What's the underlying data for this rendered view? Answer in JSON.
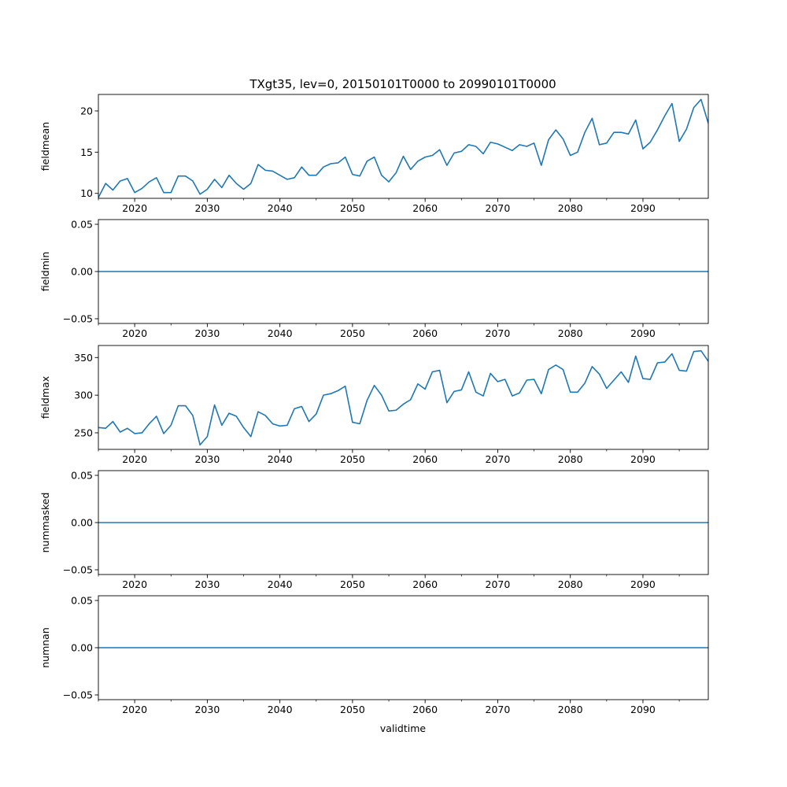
{
  "figure": {
    "title": "TXgt35, lev=0, 20150101T0000 to 20990101T0000",
    "xlabel": "validtime"
  },
  "colors": {
    "line": "#1f77b4",
    "axes": "#000000",
    "background": "#ffffff"
  },
  "chart_data": [
    {
      "type": "line",
      "ylabel": "fieldmean",
      "xlim": [
        2015,
        2099
      ],
      "ylim": [
        9.4,
        22.0
      ],
      "x_ticks": [
        "2020",
        "2030",
        "2040",
        "2050",
        "2060",
        "2070",
        "2080",
        "2090"
      ],
      "y_ticks": [
        "10",
        "15",
        "20"
      ],
      "grid": false,
      "x_start_year": 2015,
      "series": [
        {
          "values": [
            9.5,
            11.2,
            10.4,
            11.5,
            11.8,
            10.1,
            10.6,
            11.4,
            11.9,
            10.1,
            10.1,
            12.1,
            12.1,
            11.5,
            9.9,
            10.5,
            11.7,
            10.7,
            12.2,
            11.2,
            10.5,
            11.2,
            13.5,
            12.8,
            12.7,
            12.2,
            11.7,
            11.9,
            13.2,
            12.2,
            12.2,
            13.2,
            13.6,
            13.7,
            14.4,
            12.3,
            12.1,
            13.9,
            14.4,
            12.2,
            11.4,
            12.5,
            14.5,
            12.9,
            13.9,
            14.4,
            14.6,
            15.3,
            13.4,
            14.9,
            15.1,
            15.9,
            15.7,
            14.8,
            16.2,
            16.0,
            15.6,
            15.2,
            15.9,
            15.7,
            16.1,
            13.4,
            16.5,
            17.7,
            16.6,
            14.6,
            15.0,
            17.4,
            19.1,
            15.9,
            16.1,
            17.4,
            17.4,
            17.2,
            18.9,
            15.4,
            16.2,
            17.7,
            19.4,
            20.9,
            16.3,
            17.8,
            20.4,
            21.4,
            18.5
          ]
        }
      ]
    },
    {
      "type": "line",
      "ylabel": "fieldmin",
      "xlim": [
        2015,
        2099
      ],
      "ylim": [
        -0.055,
        0.055
      ],
      "x_ticks": [
        "2020",
        "2030",
        "2040",
        "2050",
        "2060",
        "2070",
        "2080",
        "2090"
      ],
      "y_ticks": [
        "−0.05",
        "0.00",
        "0.05"
      ],
      "grid": false,
      "x_start_year": 2015,
      "series": [
        {
          "values": [
            0,
            0,
            0,
            0,
            0,
            0,
            0,
            0,
            0,
            0,
            0,
            0,
            0,
            0,
            0,
            0,
            0,
            0,
            0,
            0,
            0,
            0,
            0,
            0,
            0,
            0,
            0,
            0,
            0,
            0,
            0,
            0,
            0,
            0,
            0,
            0,
            0,
            0,
            0,
            0,
            0,
            0,
            0,
            0,
            0,
            0,
            0,
            0,
            0,
            0,
            0,
            0,
            0,
            0,
            0,
            0,
            0,
            0,
            0,
            0,
            0,
            0,
            0,
            0,
            0,
            0,
            0,
            0,
            0,
            0,
            0,
            0,
            0,
            0,
            0,
            0,
            0,
            0,
            0,
            0,
            0,
            0,
            0,
            0,
            0
          ]
        }
      ]
    },
    {
      "type": "line",
      "ylabel": "fieldmax",
      "xlim": [
        2015,
        2099
      ],
      "ylim": [
        228,
        366
      ],
      "x_ticks": [
        "2020",
        "2030",
        "2040",
        "2050",
        "2060",
        "2070",
        "2080",
        "2090"
      ],
      "y_ticks": [
        "250",
        "300",
        "350"
      ],
      "grid": false,
      "x_start_year": 2015,
      "series": [
        {
          "values": [
            257,
            256,
            265,
            251,
            256,
            249,
            250,
            262,
            272,
            249,
            260,
            286,
            286,
            273,
            234,
            245,
            287,
            260,
            276,
            272,
            257,
            245,
            278,
            273,
            262,
            259,
            260,
            282,
            285,
            265,
            275,
            300,
            302,
            306,
            312,
            264,
            262,
            293,
            313,
            300,
            279,
            280,
            288,
            294,
            315,
            308,
            331,
            333,
            290,
            305,
            307,
            331,
            304,
            299,
            329,
            318,
            321,
            299,
            303,
            320,
            321,
            302,
            334,
            340,
            334,
            304,
            304,
            316,
            338,
            328,
            309,
            320,
            331,
            317,
            352,
            322,
            321,
            343,
            344,
            355,
            333,
            332,
            358,
            359,
            345
          ]
        }
      ]
    },
    {
      "type": "line",
      "ylabel": "nummasked",
      "xlim": [
        2015,
        2099
      ],
      "ylim": [
        -0.055,
        0.055
      ],
      "x_ticks": [
        "2020",
        "2030",
        "2040",
        "2050",
        "2060",
        "2070",
        "2080",
        "2090"
      ],
      "y_ticks": [
        "−0.05",
        "0.00",
        "0.05"
      ],
      "grid": false,
      "x_start_year": 2015,
      "series": [
        {
          "values": [
            0,
            0,
            0,
            0,
            0,
            0,
            0,
            0,
            0,
            0,
            0,
            0,
            0,
            0,
            0,
            0,
            0,
            0,
            0,
            0,
            0,
            0,
            0,
            0,
            0,
            0,
            0,
            0,
            0,
            0,
            0,
            0,
            0,
            0,
            0,
            0,
            0,
            0,
            0,
            0,
            0,
            0,
            0,
            0,
            0,
            0,
            0,
            0,
            0,
            0,
            0,
            0,
            0,
            0,
            0,
            0,
            0,
            0,
            0,
            0,
            0,
            0,
            0,
            0,
            0,
            0,
            0,
            0,
            0,
            0,
            0,
            0,
            0,
            0,
            0,
            0,
            0,
            0,
            0,
            0,
            0,
            0,
            0,
            0,
            0
          ]
        }
      ]
    },
    {
      "type": "line",
      "ylabel": "numnan",
      "xlim": [
        2015,
        2099
      ],
      "ylim": [
        -0.055,
        0.055
      ],
      "x_ticks": [
        "2020",
        "2030",
        "2040",
        "2050",
        "2060",
        "2070",
        "2080",
        "2090"
      ],
      "y_ticks": [
        "−0.05",
        "0.00",
        "0.05"
      ],
      "grid": false,
      "x_start_year": 2015,
      "series": [
        {
          "values": [
            0,
            0,
            0,
            0,
            0,
            0,
            0,
            0,
            0,
            0,
            0,
            0,
            0,
            0,
            0,
            0,
            0,
            0,
            0,
            0,
            0,
            0,
            0,
            0,
            0,
            0,
            0,
            0,
            0,
            0,
            0,
            0,
            0,
            0,
            0,
            0,
            0,
            0,
            0,
            0,
            0,
            0,
            0,
            0,
            0,
            0,
            0,
            0,
            0,
            0,
            0,
            0,
            0,
            0,
            0,
            0,
            0,
            0,
            0,
            0,
            0,
            0,
            0,
            0,
            0,
            0,
            0,
            0,
            0,
            0,
            0,
            0,
            0,
            0,
            0,
            0,
            0,
            0,
            0,
            0,
            0,
            0,
            0,
            0,
            0
          ]
        }
      ]
    }
  ]
}
